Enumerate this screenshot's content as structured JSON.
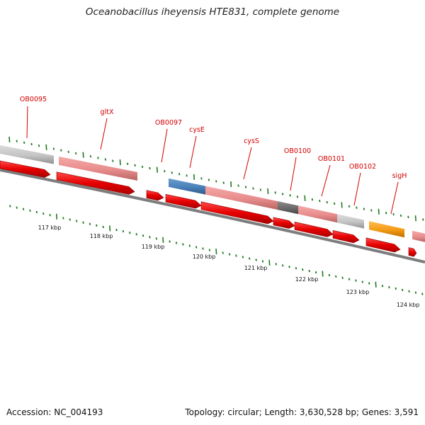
{
  "title": "Oceanobacillus iheyensis HTE831, complete genome",
  "footer": {
    "accession": "Accession: NC_004193",
    "stats": "Topology: circular; Length: 3,630,528 bp; Genes: 3,591"
  },
  "colors": {
    "label": "#d40000",
    "tick": "#1f7a1f",
    "cds": "#e60000",
    "backbone": "#808080",
    "pink": "#e88c8c",
    "gray": "#c4c4c4",
    "blue": "#4a7fb8",
    "dark": "#6a6a6a",
    "orange": "#f39a14"
  },
  "genes": [
    {
      "name": "OB0095"
    },
    {
      "name": "gltX"
    },
    {
      "name": "OB0097"
    },
    {
      "name": "cysE"
    },
    {
      "name": "cysS"
    },
    {
      "name": "OB0100"
    },
    {
      "name": "OB0101"
    },
    {
      "name": "OB0102"
    },
    {
      "name": "sigH"
    }
  ],
  "kbp_labels": [
    "117 kbp",
    "118 kbp",
    "119 kbp",
    "120 kbp",
    "121 kbp",
    "122 kbp",
    "123 kbp",
    "124 kbp"
  ]
}
